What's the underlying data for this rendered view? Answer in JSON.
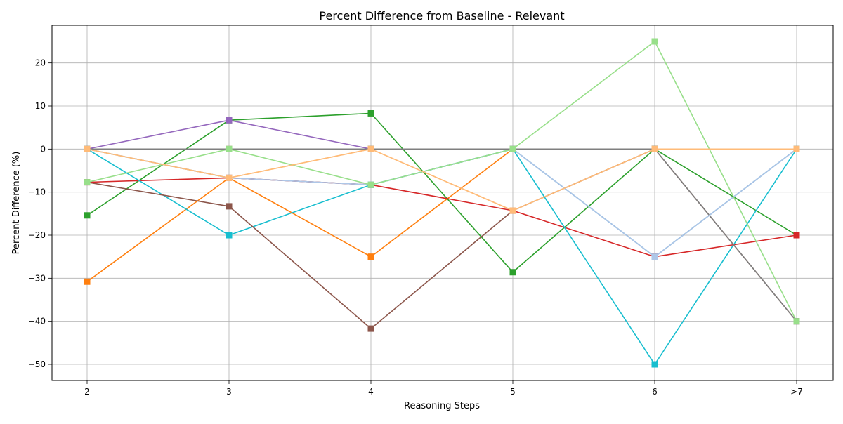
{
  "chart_data": {
    "type": "line",
    "title": "Percent Difference from Baseline - Relevant",
    "xlabel": "Reasoning Steps",
    "ylabel": "Percent Difference (%)",
    "categories": [
      "2",
      "3",
      "4",
      "5",
      "6",
      ">7"
    ],
    "ylim": [
      -53.75,
      28.75
    ],
    "yticks": [
      20,
      10,
      0,
      -10,
      -20,
      -30,
      -40,
      -50
    ],
    "ytick_labels": [
      "20",
      "10",
      "0",
      "−10",
      "−20",
      "−30",
      "−40",
      "−50"
    ],
    "grid": true,
    "marker": "square",
    "series": [
      {
        "color": "#1f77b4",
        "values": [
          0,
          -6.7,
          -8.3,
          0,
          -25,
          0
        ]
      },
      {
        "color": "#ff7f0e",
        "values": [
          -30.8,
          -6.7,
          -25,
          0,
          0,
          0
        ]
      },
      {
        "color": "#ffbb78",
        "values": [
          0,
          -6.7,
          0,
          -14.3,
          0,
          0
        ]
      },
      {
        "color": "#2ca02c",
        "values": [
          -15.4,
          6.7,
          8.3,
          -28.6,
          0,
          -20
        ]
      },
      {
        "color": "#d62728",
        "values": [
          -7.7,
          -6.7,
          -8.3,
          -14.3,
          -25,
          -20
        ]
      },
      {
        "color": "#17becf",
        "values": [
          0,
          -20,
          -8.3,
          0,
          -50,
          0
        ]
      },
      {
        "color": "#8c564b",
        "values": [
          -7.7,
          -13.3,
          -41.7,
          -14.3,
          0,
          -40
        ]
      },
      {
        "color": "#9467bd",
        "values": [
          0,
          6.7,
          0,
          0,
          0,
          0
        ]
      },
      {
        "color": "#bcbd22",
        "values": [
          0,
          0,
          0,
          0,
          0,
          0
        ]
      },
      {
        "color": "#7f7f7f",
        "values": [
          0,
          0,
          0,
          0,
          0,
          -40
        ]
      },
      {
        "color": "#aec7e8",
        "values": [
          0,
          -6.7,
          -8.3,
          0,
          -25,
          0
        ]
      },
      {
        "color": "#98df8a",
        "values": [
          -7.7,
          0,
          -8.3,
          0,
          25,
          -40
        ]
      },
      {
        "color": "#ffbb78",
        "values": [
          0,
          -6.7,
          0,
          -14.3,
          0,
          0
        ]
      }
    ]
  }
}
